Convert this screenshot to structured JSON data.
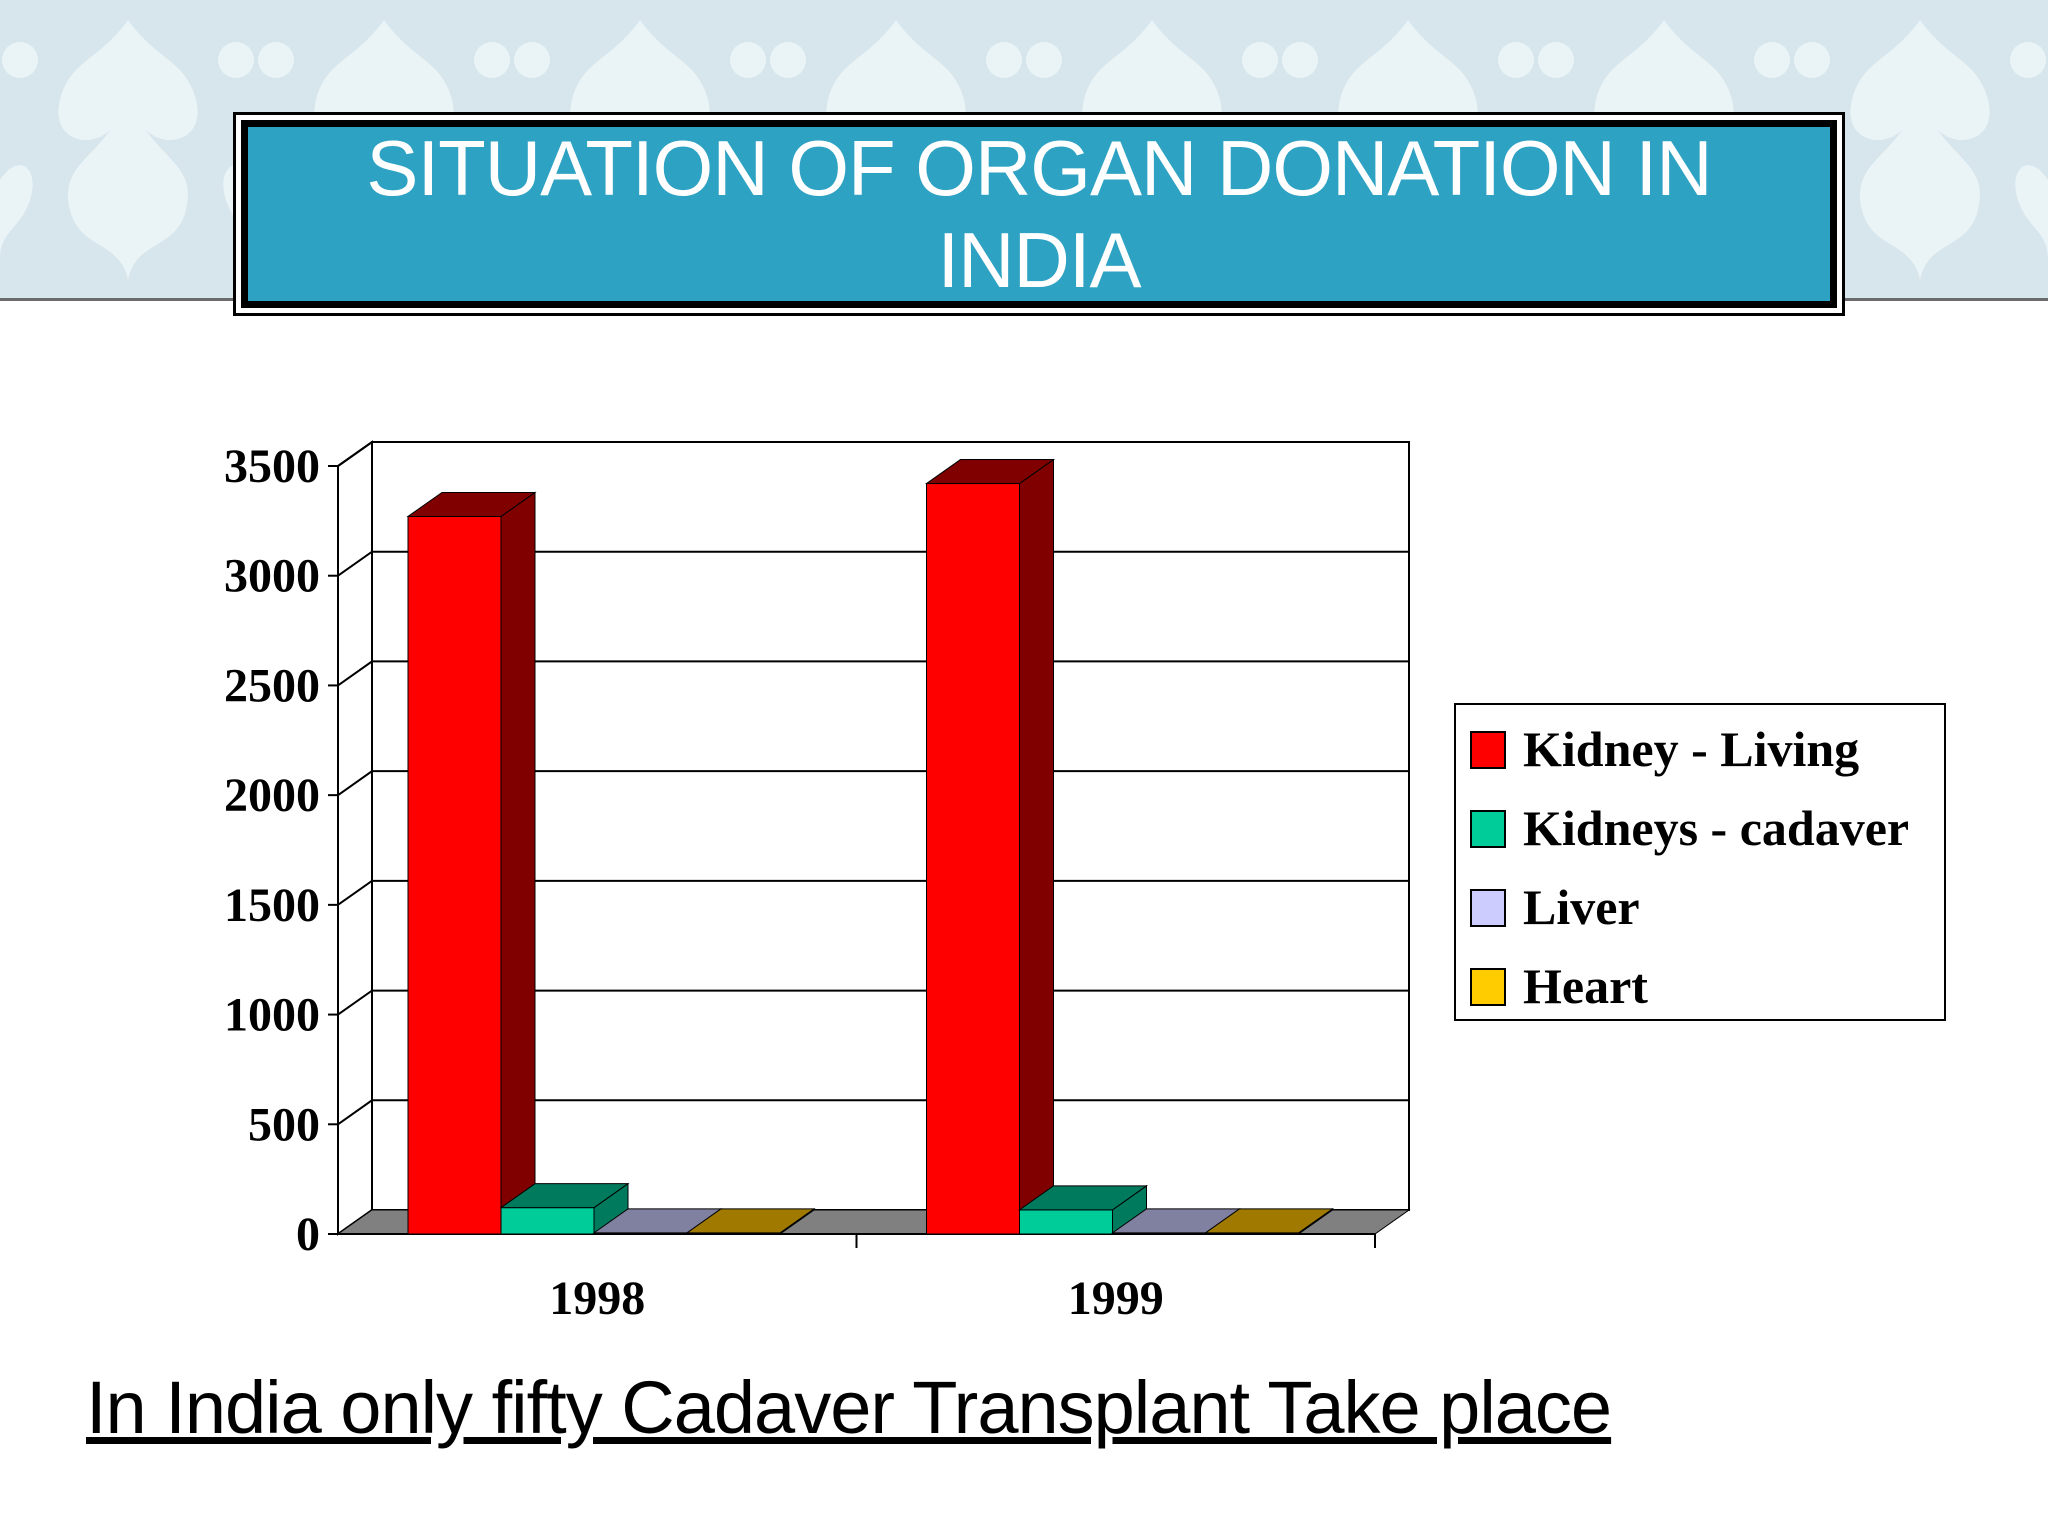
{
  "slide": {
    "title": "SITUATION OF ORGAN DONATION IN INDIA",
    "subtitle": "In India only fifty Cadaver Transplant Take place"
  },
  "chart_data": {
    "type": "bar",
    "style": "3d-clustered-column",
    "title": "",
    "xlabel": "",
    "ylabel": "",
    "categories": [
      "1998",
      "1999"
    ],
    "series": [
      {
        "name": "Kidney - Living",
        "values": [
          3270,
          3420
        ],
        "color": "#ff0000",
        "dark": "#800000"
      },
      {
        "name": "Kidneys - cadaver",
        "values": [
          120,
          110
        ],
        "color": "#00cc99",
        "dark": "#007a5c"
      },
      {
        "name": "Liver",
        "values": [
          5,
          5
        ],
        "color": "#ccccff",
        "dark": "#8080a0"
      },
      {
        "name": "Heart",
        "values": [
          5,
          5
        ],
        "color": "#ffcc00",
        "dark": "#a07a00"
      }
    ],
    "ylim": [
      0,
      3500
    ],
    "yticks": [
      "0",
      "500",
      "1000",
      "1500",
      "2000",
      "2500",
      "3000",
      "3500"
    ],
    "grid": true,
    "legend_position": "right"
  }
}
